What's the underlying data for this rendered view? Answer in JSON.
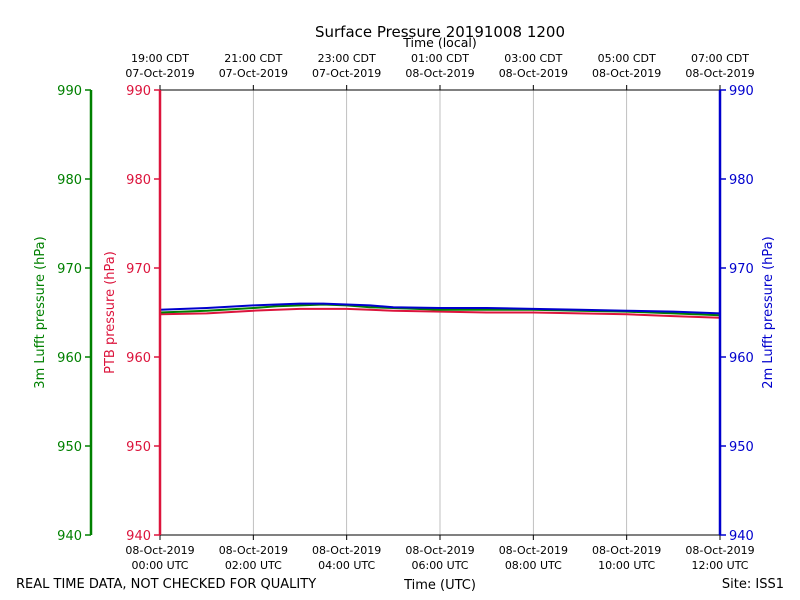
{
  "chart_data": {
    "type": "line",
    "title": "Surface Pressure 20191008 1200",
    "top_axis_label": "Time (local)",
    "xlabel": "Time (UTC)",
    "x_unit": "hours after 08-Oct-2019 00:00 UTC",
    "xlim": [
      0,
      12
    ],
    "x_ticks": [
      0,
      2,
      4,
      6,
      8,
      10,
      12
    ],
    "x_tick_labels_bottom": [
      [
        "08-Oct-2019",
        "00:00 UTC"
      ],
      [
        "08-Oct-2019",
        "02:00 UTC"
      ],
      [
        "08-Oct-2019",
        "04:00 UTC"
      ],
      [
        "08-Oct-2019",
        "06:00 UTC"
      ],
      [
        "08-Oct-2019",
        "08:00 UTC"
      ],
      [
        "08-Oct-2019",
        "10:00 UTC"
      ],
      [
        "08-Oct-2019",
        "12:00 UTC"
      ]
    ],
    "x_tick_labels_top": [
      [
        "19:00 CDT",
        "07-Oct-2019"
      ],
      [
        "21:00 CDT",
        "07-Oct-2019"
      ],
      [
        "23:00 CDT",
        "07-Oct-2019"
      ],
      [
        "01:00 CDT",
        "08-Oct-2019"
      ],
      [
        "03:00 CDT",
        "08-Oct-2019"
      ],
      [
        "05:00 CDT",
        "08-Oct-2019"
      ],
      [
        "07:00 CDT",
        "08-Oct-2019"
      ]
    ],
    "grid_x": true,
    "grid_y": false,
    "y_axes": [
      {
        "id": "lufft3m",
        "label": "3m Lufft pressure (hPa)",
        "color": "#008000",
        "ylim": [
          940,
          990
        ],
        "ticks": [
          940,
          950,
          960,
          970,
          980,
          990
        ]
      },
      {
        "id": "ptb",
        "label": "PTB pressure (hPa)",
        "color": "#dc143c",
        "ylim": [
          940,
          990
        ],
        "ticks": [
          940,
          950,
          960,
          970,
          980,
          990
        ]
      },
      {
        "id": "lufft2m",
        "label": "2m Lufft pressure (hPa)",
        "color": "#0000cd",
        "ylim": [
          940,
          990
        ],
        "ticks": [
          940,
          950,
          960,
          970,
          980,
          990
        ]
      }
    ],
    "series": [
      {
        "axis": "ptb",
        "color": "#dc143c",
        "x": [
          0,
          1,
          2,
          2.5,
          3,
          3.5,
          4,
          4.5,
          5,
          6,
          7,
          8,
          9,
          10,
          11,
          12
        ],
        "y": [
          964.8,
          964.9,
          965.2,
          965.3,
          965.4,
          965.4,
          965.4,
          965.3,
          965.2,
          965.1,
          965.0,
          965.0,
          964.9,
          964.8,
          964.6,
          964.4
        ]
      },
      {
        "axis": "lufft3m",
        "color": "#008000",
        "x": [
          0,
          1,
          2,
          2.5,
          3,
          3.5,
          4,
          4.5,
          5,
          6,
          7,
          8,
          9,
          10,
          11,
          12
        ],
        "y": [
          965.0,
          965.2,
          965.5,
          965.7,
          965.8,
          965.9,
          965.8,
          965.6,
          965.5,
          965.3,
          965.3,
          965.3,
          965.2,
          965.1,
          964.9,
          964.7
        ]
      },
      {
        "axis": "lufft2m",
        "color": "#0000cd",
        "x": [
          0,
          1,
          2,
          2.5,
          3,
          3.5,
          4,
          4.5,
          5,
          6,
          7,
          8,
          9,
          10,
          11,
          12
        ],
        "y": [
          965.3,
          965.5,
          965.8,
          965.9,
          966.0,
          966.0,
          965.9,
          965.8,
          965.6,
          965.5,
          965.5,
          965.4,
          965.3,
          965.2,
          965.1,
          964.9
        ]
      }
    ]
  },
  "footer": {
    "disclaimer": "REAL TIME DATA, NOT CHECKED FOR QUALITY",
    "site": "Site: ISS1"
  }
}
